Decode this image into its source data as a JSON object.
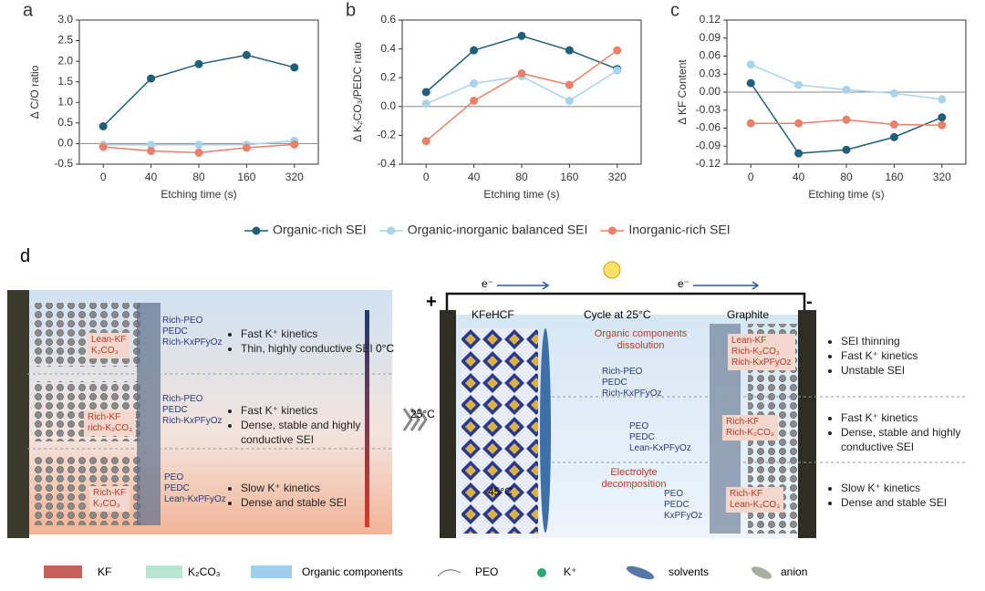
{
  "chart_data": [
    {
      "type": "line",
      "panel_label": "a",
      "x_label": "Etching time (s)",
      "y_label": "Δ C/O ratio",
      "categories": [
        "0",
        "40",
        "80",
        "160",
        "320"
      ],
      "series": [
        {
          "name": "Organic-rich SEI",
          "color": "#1f5f7a",
          "values": [
            0.42,
            1.58,
            1.93,
            2.15,
            1.85
          ]
        },
        {
          "name": "Organic-inorganic balanced SEI",
          "color": "#a9d3e8",
          "values": [
            -0.03,
            -0.03,
            -0.03,
            -0.03,
            0.07
          ]
        },
        {
          "name": "Inorganic-rich SEI",
          "color": "#e8806a",
          "values": [
            -0.08,
            -0.18,
            -0.22,
            -0.1,
            -0.02
          ]
        }
      ],
      "ylim": [
        -0.5,
        3.0
      ],
      "yticks": [
        -0.5,
        {
          "value": 0,
          "label": "0.0"
        },
        0.5,
        {
          "value": 1,
          "label": "1.0"
        },
        1.5,
        {
          "value": 2,
          "label": "2.0"
        },
        2.5,
        {
          "value": 3,
          "label": "3.0"
        }
      ],
      "reference_line": 0
    },
    {
      "type": "line",
      "panel_label": "b",
      "x_label": "Etching time (s)",
      "y_label": "Δ K₂CO₃/PEDC ratio",
      "categories": [
        "0",
        "40",
        "80",
        "160",
        "320"
      ],
      "series": [
        {
          "color": "#1f5f7a",
          "values": [
            0.1,
            0.39,
            0.49,
            0.39,
            0.26
          ]
        },
        {
          "color": "#a9d3e8",
          "values": [
            0.02,
            0.16,
            0.21,
            0.04,
            0.25
          ]
        },
        {
          "color": "#e8806a",
          "values": [
            -0.24,
            0.04,
            0.23,
            0.15,
            0.39
          ]
        }
      ],
      "ylim": [
        -0.4,
        0.6
      ],
      "yticks": [
        -0.4,
        -0.2,
        {
          "value": 0,
          "label": "0.0"
        },
        0.2,
        0.4,
        0.6
      ],
      "reference_line": 0
    },
    {
      "type": "line",
      "panel_label": "c",
      "x_label": "Etching time (s)",
      "y_label": "Δ KF Content",
      "categories": [
        "0",
        "40",
        "80",
        "160",
        "320"
      ],
      "series": [
        {
          "color": "#1f5f7a",
          "values": [
            0.015,
            -0.102,
            -0.096,
            -0.075,
            -0.042
          ]
        },
        {
          "color": "#a9d3e8",
          "values": [
            0.046,
            0.012,
            0.004,
            -0.002,
            -0.012
          ]
        },
        {
          "color": "#e8806a",
          "values": [
            -0.052,
            -0.052,
            -0.046,
            -0.054,
            -0.055
          ]
        }
      ],
      "ylim": [
        -0.12,
        0.12
      ],
      "yticks": [
        -0.12,
        -0.09,
        -0.06,
        -0.03,
        {
          "value": 0,
          "label": "0.00"
        },
        0.03,
        0.06,
        0.09,
        0.12
      ],
      "reference_line": 0
    }
  ],
  "schematic": {
    "panel_label": "d",
    "left_layers": [
      {
        "inner": [
          "Lean-KF",
          "K₂CO₃"
        ],
        "outer": [
          "Rich-PEO",
          "PEDC",
          "Rich-KxPFyOz"
        ],
        "bullets": [
          "Fast K⁺ kinetics",
          "Thin, highly conductive SEI"
        ],
        "temperature": "0°C"
      },
      {
        "inner": [
          "Rich-KF",
          "rich-K₂CO₃"
        ],
        "outer": [
          "Rich-PEO",
          "PEDC",
          "Rich-KxPFyOz"
        ],
        "bullets": [
          "Fast K⁺ kinetics",
          "Dense, stable and highly conductive SEI"
        ],
        "temperature": "25°C"
      },
      {
        "inner": [
          "Rich-KF",
          "K₂CO₃"
        ],
        "outer": [
          "PEO",
          "PEDC",
          "Lean-KxPFyOz"
        ],
        "bullets": [
          "Slow K⁺ kinetics",
          "Dense and stable SEI"
        ],
        "temperature": "45°C"
      }
    ],
    "right": {
      "electron": [
        "e⁻",
        "e⁻"
      ],
      "positive": "+",
      "negative": "-",
      "cathode": "KFeHCF",
      "condition": "Cycle at 25°C",
      "anode": "Graphite",
      "annotations": [
        "Organic components dissolution",
        "Electrolyte decomposition"
      ],
      "layers": [
        {
          "outer": [
            "Rich-PEO",
            "PEDC",
            "Rich-KxPFyOz"
          ],
          "inner": [
            "Lean-KF",
            "Rich-K₂CO₃",
            "Rich-KxPFyOz"
          ],
          "bullets": [
            "SEI thinning",
            "Fast K⁺ kinetics",
            "Unstable SEI"
          ]
        },
        {
          "outer": [
            "PEO",
            "PEDC",
            "Lean-KxPFyOz"
          ],
          "inner": [
            "Rich-KF",
            "Rich-K₂CO₃"
          ],
          "bullets": [
            "Fast K⁺ kinetics",
            "Dense, stable and highly conductive SEI"
          ]
        },
        {
          "outer": [
            "PEO",
            "PEDC",
            "KxPFyOz"
          ],
          "inner": [
            "Rich-KF",
            "Lean-K₂CO₃"
          ],
          "bullets": [
            "Slow K⁺ kinetics",
            "Dense and stable SEI"
          ]
        }
      ]
    },
    "legend": [
      "KF",
      "K₂CO₃",
      "Organic components",
      "PEO",
      "K⁺",
      "solvents",
      "anion"
    ]
  }
}
